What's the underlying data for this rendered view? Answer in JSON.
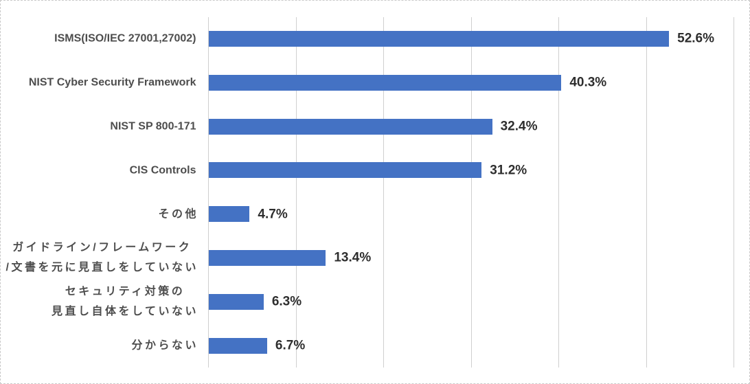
{
  "chart_data": {
    "type": "bar",
    "orientation": "horizontal",
    "title": "",
    "xlabel": "",
    "ylabel": "",
    "categories": [
      "ISMS(ISO/IEC 27001,27002)",
      "NIST Cyber Security Framework",
      "NIST SP 800-171",
      "CIS Controls",
      "その他",
      "ガイドライン/フレームワーク\n/文書を元に見直しをしていない",
      "セキュリティ対策の\n見直し自体をしていない",
      "分からない"
    ],
    "values": [
      52.6,
      40.3,
      32.4,
      31.2,
      4.7,
      13.4,
      6.3,
      6.7
    ],
    "value_labels": [
      "52.6%",
      "40.3%",
      "32.4%",
      "31.2%",
      "4.7%",
      "13.4%",
      "6.3%",
      "6.7%"
    ],
    "xlim": [
      0,
      60
    ],
    "gridline_interval": 10,
    "grid": true,
    "legend": false,
    "colors": {
      "bar": "#4472C4",
      "gridline": "#CFCFCF",
      "category_label": "#4D4D4D",
      "value_label": "#2E2E2E",
      "background": "#FFFFFF",
      "border": "#C9C9C9"
    }
  }
}
